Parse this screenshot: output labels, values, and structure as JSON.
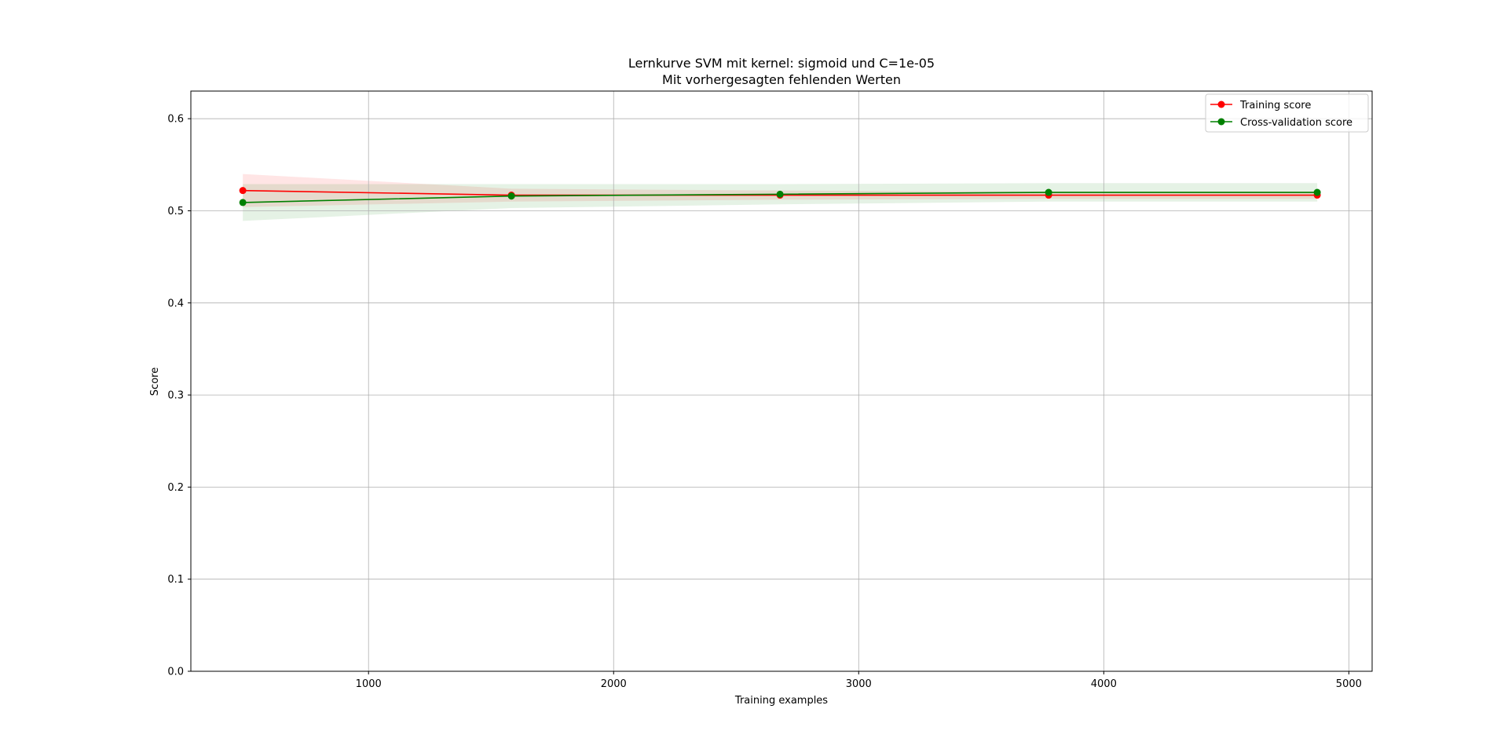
{
  "chart_data": {
    "type": "line",
    "title": "Lernkurve SVM mit kernel: sigmoid und C=1e-05",
    "subtitle": "Mit vorhergesagten fehlenden Werten",
    "xlabel": "Training examples",
    "ylabel": "Score",
    "xlim": [
      275,
      5095
    ],
    "ylim": [
      0.0,
      0.63
    ],
    "xticks": [
      1000,
      2000,
      3000,
      4000,
      5000
    ],
    "yticks": [
      0.0,
      0.1,
      0.2,
      0.3,
      0.4,
      0.5,
      0.6
    ],
    "grid": true,
    "legend_position": "upper right",
    "x": [
      487,
      1583,
      2679,
      3775,
      4871
    ],
    "series": [
      {
        "name": "Training score",
        "color": "#ff0000",
        "values": [
          0.522,
          0.517,
          0.517,
          0.517,
          0.517
        ],
        "band_lower": [
          0.504,
          0.51,
          0.512,
          0.513,
          0.513
        ],
        "band_upper": [
          0.54,
          0.524,
          0.522,
          0.521,
          0.521
        ]
      },
      {
        "name": "Cross-validation score",
        "color": "#008000",
        "values": [
          0.509,
          0.516,
          0.518,
          0.52,
          0.52
        ],
        "band_lower": [
          0.489,
          0.503,
          0.507,
          0.51,
          0.51
        ],
        "band_upper": [
          0.529,
          0.529,
          0.529,
          0.53,
          0.53
        ]
      }
    ]
  }
}
